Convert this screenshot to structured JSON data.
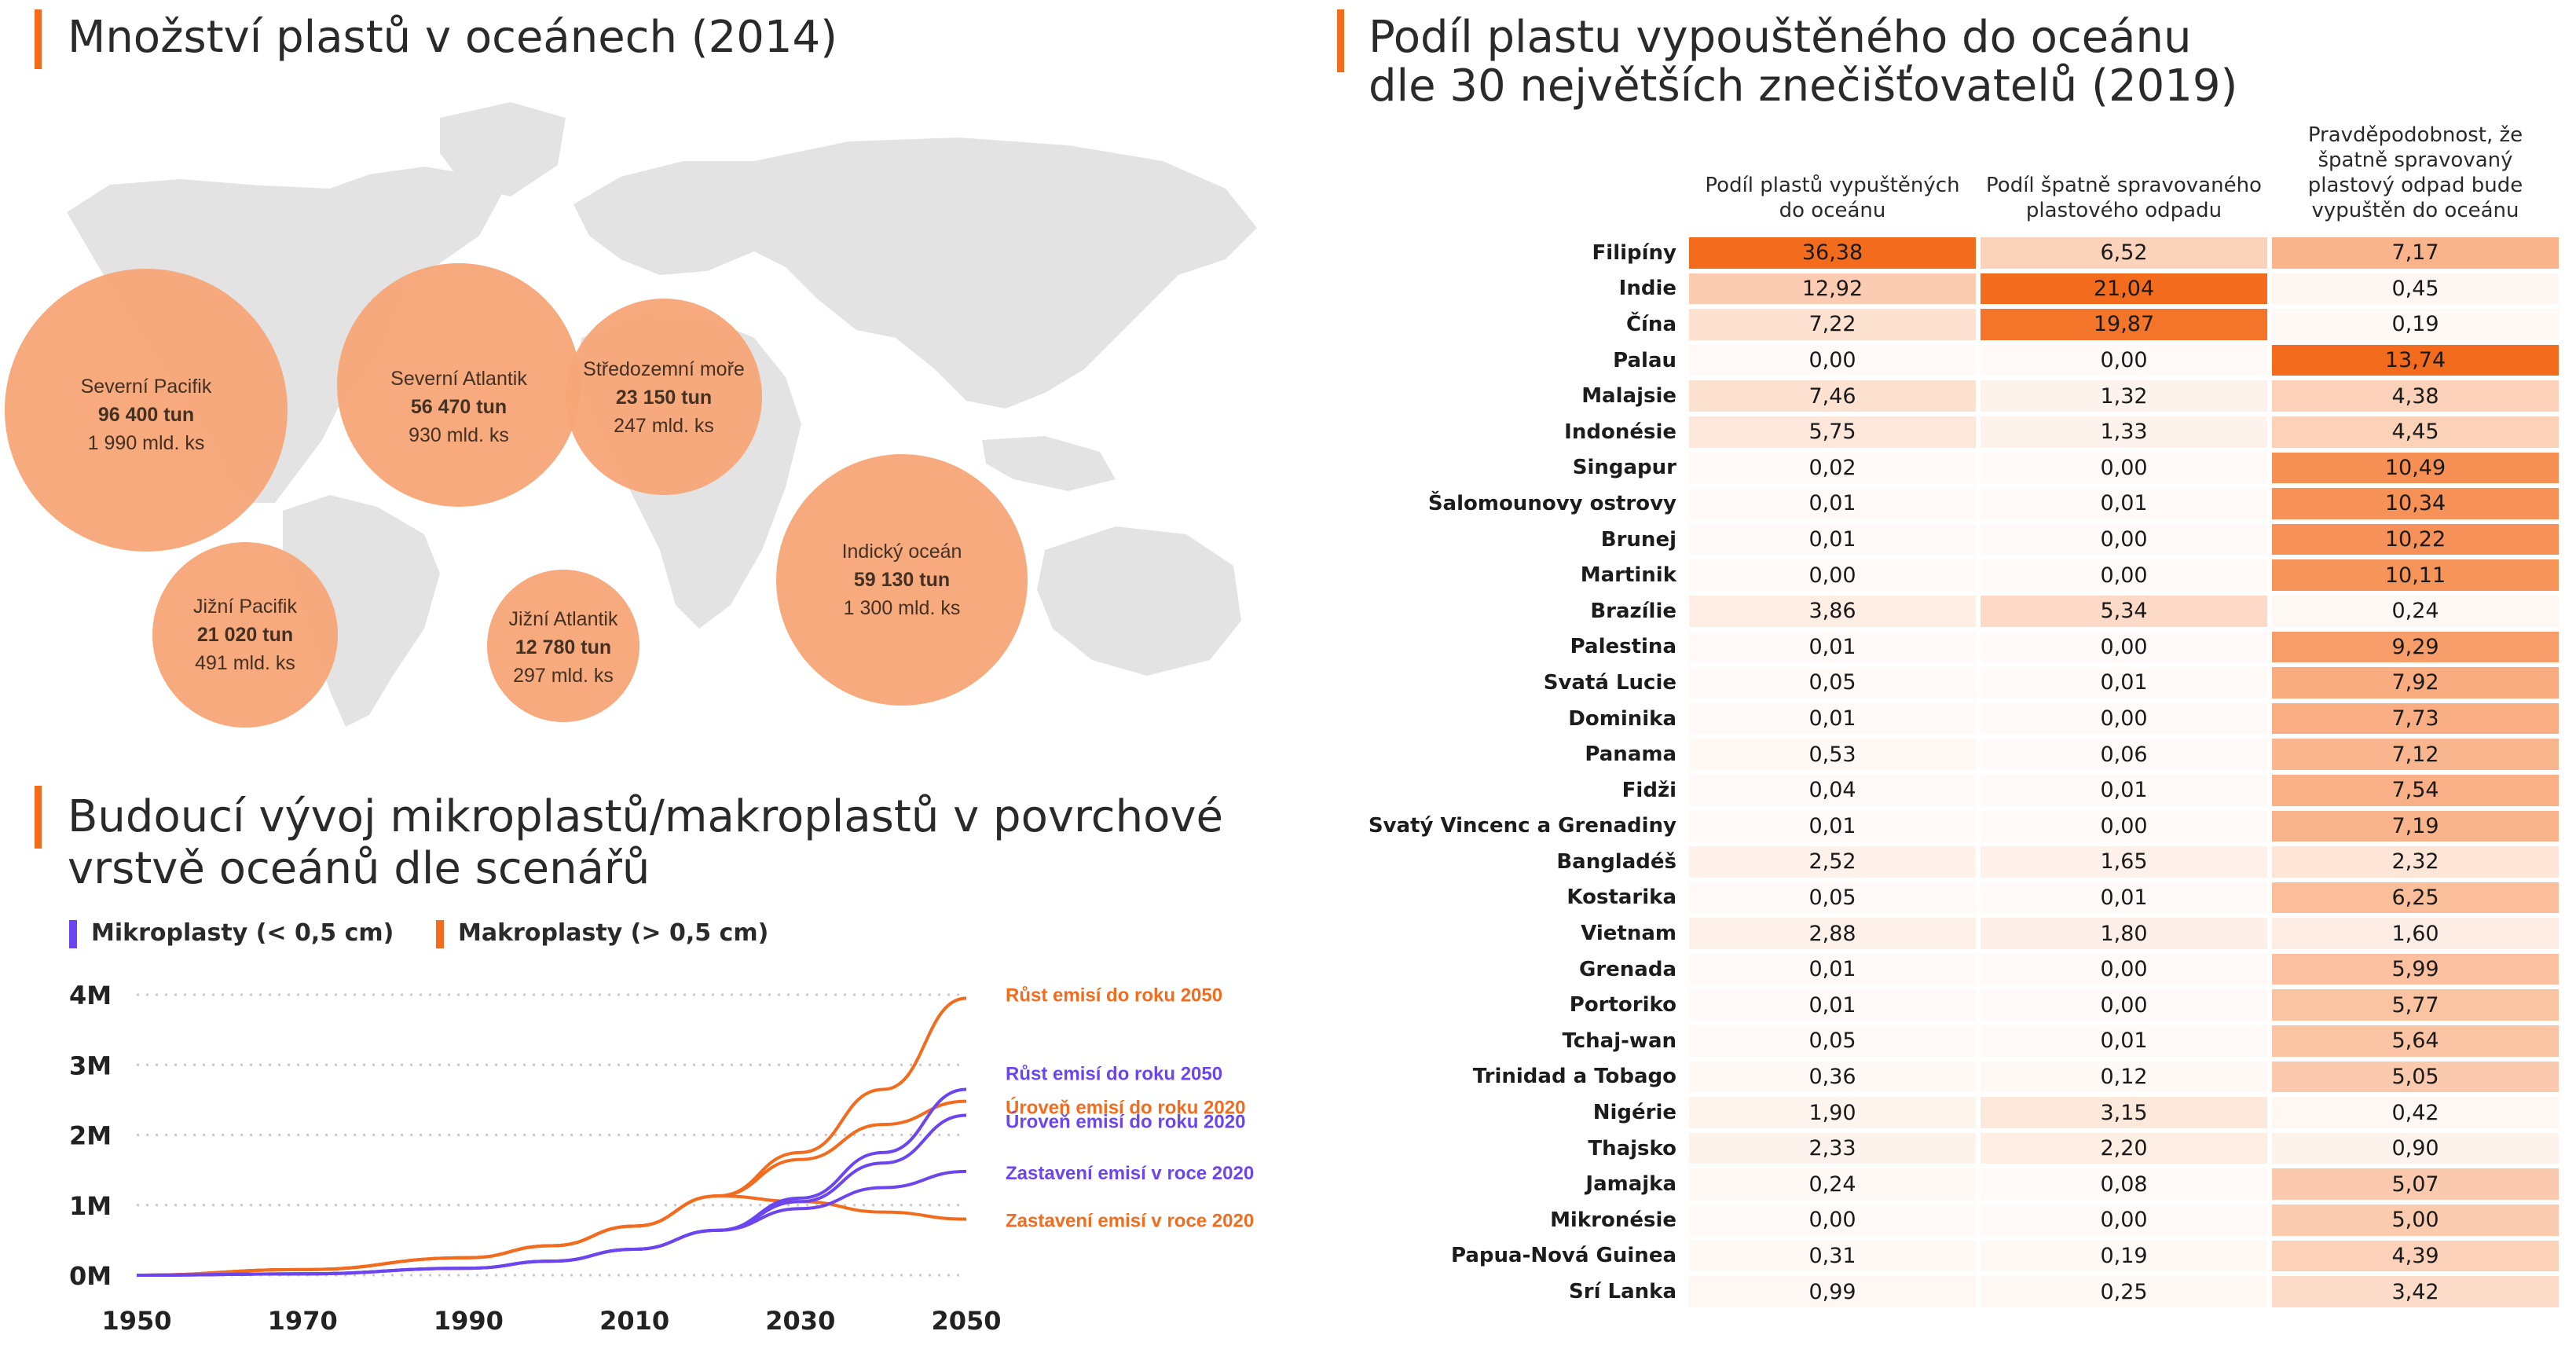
{
  "map_panel": {
    "title": "Množství plastů v oceánech (2014)",
    "accent_color": "#f36b1c",
    "bubble_color": "#f7a577",
    "land_color": "#e3e3e3",
    "bubbles": [
      {
        "name": "Severní Pacifik",
        "tons": "96 400 tun",
        "count": "1 990 mld. ks"
      },
      {
        "name": "Severní Atlantik",
        "tons": "56 470 tun",
        "count": "930 mld. ks"
      },
      {
        "name": "Středozemní moře",
        "tons": "23 150 tun",
        "count": "247 mld. ks"
      },
      {
        "name": "Jižní Pacifik",
        "tons": "21 020 tun",
        "count": "491 mld. ks"
      },
      {
        "name": "Jižní Atlantik",
        "tons": "12 780 tun",
        "count": "297 mld. ks"
      },
      {
        "name": "Indický oceán",
        "tons": "59 130 tun",
        "count": "1 300 mld. ks"
      }
    ]
  },
  "line_panel": {
    "title_line1": "Budoucí vývoj mikroplastů/makroplastů v povrchové",
    "title_line2": "vrstvě oceánů dle scenářů",
    "legend_micro": "Mikroplasty (< 0,5 cm)",
    "legend_macro": "Makroplasty (> 0,5 cm)",
    "micro_color": "#6b46f0",
    "macro_color": "#f36b1c"
  },
  "table_panel": {
    "title_line1": "Podíl plastu vypouštěného do oceánu",
    "title_line2": "dle 30 největších znečišťovatelů (2019)",
    "col1": "Podíl plastů vypuštěných do oceánu",
    "col2": "Podíl špatně spravovaného plastového odpadu",
    "col3": "Pravděpodobnost, že špatně spravovaný plastový odpad bude vypuštěn do oceánu",
    "heat_color": "#f36b1c"
  },
  "chart_data": [
    {
      "type": "line",
      "xlabel": "",
      "ylabel": "",
      "x_ticks": [
        "1950",
        "1970",
        "1990",
        "2010",
        "2030",
        "2050"
      ],
      "y_ticks": [
        "0M",
        "1M",
        "2M",
        "3M",
        "4M"
      ],
      "xlim": [
        1950,
        2050
      ],
      "ylim": [
        0,
        4000000
      ],
      "grid": "horizontal dotted",
      "legend_position": "top-left",
      "series": [
        {
          "name": "Růst emisí do roku 2050",
          "group": "Makroplasty",
          "x": [
            1950,
            1970,
            1990,
            2000,
            2010,
            2020,
            2030,
            2040,
            2050
          ],
          "y": [
            0,
            80000,
            250000,
            420000,
            700000,
            1130000,
            1750000,
            2650000,
            3950000
          ]
        },
        {
          "name": "Úroveň emisí do roku 2020",
          "group": "Makroplasty",
          "x": [
            1950,
            1970,
            1990,
            2000,
            2010,
            2020,
            2030,
            2040,
            2050
          ],
          "y": [
            0,
            80000,
            250000,
            420000,
            700000,
            1130000,
            1650000,
            2150000,
            2480000
          ]
        },
        {
          "name": "Zastavení emisí v roce 2020",
          "group": "Makroplasty",
          "x": [
            1950,
            1970,
            1990,
            2000,
            2010,
            2020,
            2030,
            2040,
            2050
          ],
          "y": [
            0,
            80000,
            250000,
            420000,
            700000,
            1130000,
            1050000,
            900000,
            800000
          ]
        },
        {
          "name": "Růst emisí do roku 2050",
          "group": "Mikroplasty",
          "x": [
            1950,
            1970,
            1990,
            2000,
            2010,
            2020,
            2030,
            2040,
            2050
          ],
          "y": [
            0,
            20000,
            100000,
            200000,
            370000,
            640000,
            1100000,
            1750000,
            2650000
          ]
        },
        {
          "name": "Úroveň emisí do roku 2020",
          "group": "Mikroplasty",
          "x": [
            1950,
            1970,
            1990,
            2000,
            2010,
            2020,
            2030,
            2040,
            2050
          ],
          "y": [
            0,
            20000,
            100000,
            200000,
            370000,
            640000,
            1050000,
            1600000,
            2280000
          ]
        },
        {
          "name": "Zastavení emisí v roce 2020",
          "group": "Mikroplasty",
          "x": [
            1950,
            1970,
            1990,
            2000,
            2010,
            2020,
            2030,
            2040,
            2050
          ],
          "y": [
            0,
            20000,
            100000,
            200000,
            370000,
            640000,
            950000,
            1250000,
            1480000
          ]
        }
      ]
    },
    {
      "type": "table",
      "columns": [
        "Podíl plastů vypuštěných do oceánu",
        "Podíl špatně spravovaného plastového odpadu",
        "Pravděpodobnost, že špatně spravovaný plastový odpad bude vypuštěn do oceánu"
      ],
      "rows": [
        {
          "country": "Filipíny",
          "v": [
            "36,38",
            "6,52",
            "7,17"
          ]
        },
        {
          "country": "Indie",
          "v": [
            "12,92",
            "21,04",
            "0,45"
          ]
        },
        {
          "country": "Čína",
          "v": [
            "7,22",
            "19,87",
            "0,19"
          ]
        },
        {
          "country": "Palau",
          "v": [
            "0,00",
            "0,00",
            "13,74"
          ]
        },
        {
          "country": "Malajsie",
          "v": [
            "7,46",
            "1,32",
            "4,38"
          ]
        },
        {
          "country": "Indonésie",
          "v": [
            "5,75",
            "1,33",
            "4,45"
          ]
        },
        {
          "country": "Singapur",
          "v": [
            "0,02",
            "0,00",
            "10,49"
          ]
        },
        {
          "country": "Šalomounovy ostrovy",
          "v": [
            "0,01",
            "0,01",
            "10,34"
          ]
        },
        {
          "country": "Brunej",
          "v": [
            "0,01",
            "0,00",
            "10,22"
          ]
        },
        {
          "country": "Martinik",
          "v": [
            "0,00",
            "0,00",
            "10,11"
          ]
        },
        {
          "country": "Brazílie",
          "v": [
            "3,86",
            "5,34",
            "0,24"
          ]
        },
        {
          "country": "Palestina",
          "v": [
            "0,01",
            "0,00",
            "9,29"
          ]
        },
        {
          "country": "Svatá Lucie",
          "v": [
            "0,05",
            "0,01",
            "7,92"
          ]
        },
        {
          "country": "Dominika",
          "v": [
            "0,01",
            "0,00",
            "7,73"
          ]
        },
        {
          "country": "Panama",
          "v": [
            "0,53",
            "0,06",
            "7,12"
          ]
        },
        {
          "country": "Fidži",
          "v": [
            "0,04",
            "0,01",
            "7,54"
          ]
        },
        {
          "country": "Svatý Vincenc a Grenadiny",
          "v": [
            "0,01",
            "0,00",
            "7,19"
          ]
        },
        {
          "country": "Bangladéš",
          "v": [
            "2,52",
            "1,65",
            "2,32"
          ]
        },
        {
          "country": "Kostarika",
          "v": [
            "0,05",
            "0,01",
            "6,25"
          ]
        },
        {
          "country": "Vietnam",
          "v": [
            "2,88",
            "1,80",
            "1,60"
          ]
        },
        {
          "country": "Grenada",
          "v": [
            "0,01",
            "0,00",
            "5,99"
          ]
        },
        {
          "country": "Portoriko",
          "v": [
            "0,01",
            "0,00",
            "5,77"
          ]
        },
        {
          "country": "Tchaj-wan",
          "v": [
            "0,05",
            "0,01",
            "5,64"
          ]
        },
        {
          "country": "Trinidad a Tobago",
          "v": [
            "0,36",
            "0,12",
            "5,05"
          ]
        },
        {
          "country": "Nigérie",
          "v": [
            "1,90",
            "3,15",
            "0,42"
          ]
        },
        {
          "country": "Thajsko",
          "v": [
            "2,33",
            "2,20",
            "0,90"
          ]
        },
        {
          "country": "Jamajka",
          "v": [
            "0,24",
            "0,08",
            "5,07"
          ]
        },
        {
          "country": "Mikronésie",
          "v": [
            "0,00",
            "0,00",
            "5,00"
          ]
        },
        {
          "country": "Papua-Nová Guinea",
          "v": [
            "0,31",
            "0,19",
            "4,39"
          ]
        },
        {
          "country": "Srí Lanka",
          "v": [
            "0,99",
            "0,25",
            "3,42"
          ]
        }
      ]
    }
  ]
}
